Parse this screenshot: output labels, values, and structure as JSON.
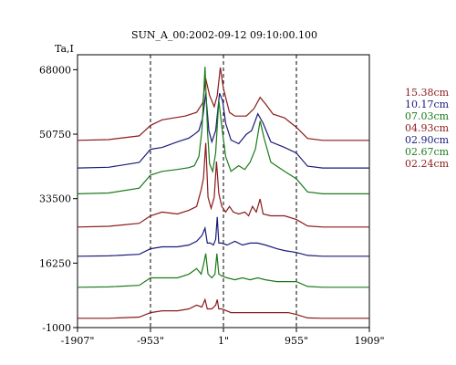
{
  "chart_data": {
    "type": "line",
    "title": "SUN_A_00:2002-09-12 09:10:00.100",
    "ylabel": "Ta,I",
    "xlabel": "",
    "x_ticks": [
      "-1907\"",
      "-953\"",
      "1\"",
      "955\"",
      "1909\""
    ],
    "y_ticks": [
      "68000",
      "50750",
      "33500",
      "16250",
      "-1000"
    ],
    "xlim": [
      -1907,
      1909
    ],
    "ylim": [
      -1000,
      72000
    ],
    "dashed_x": [
      -953,
      1,
      955
    ],
    "series": [
      {
        "name": "15.38cm",
        "color": "#8b1a1a",
        "offset": 47600,
        "points": [
          [
            -1907,
            0
          ],
          [
            -1500,
            200
          ],
          [
            -1100,
            1200
          ],
          [
            -953,
            4000
          ],
          [
            -800,
            5500
          ],
          [
            -500,
            6500
          ],
          [
            -350,
            7500
          ],
          [
            -270,
            10000
          ],
          [
            -230,
            16500
          ],
          [
            -180,
            12000
          ],
          [
            -120,
            9000
          ],
          [
            -80,
            12000
          ],
          [
            -40,
            19500
          ],
          [
            0,
            14000
          ],
          [
            80,
            7500
          ],
          [
            150,
            6500
          ],
          [
            300,
            6500
          ],
          [
            400,
            8500
          ],
          [
            480,
            11500
          ],
          [
            560,
            9500
          ],
          [
            650,
            7000
          ],
          [
            800,
            6000
          ],
          [
            955,
            3500
          ],
          [
            1100,
            500
          ],
          [
            1300,
            0
          ],
          [
            1909,
            0
          ]
        ]
      },
      {
        "name": "10.17cm",
        "color": "#1a1a7a",
        "offset": 40200,
        "points": [
          [
            -1907,
            0
          ],
          [
            -1500,
            200
          ],
          [
            -1100,
            1500
          ],
          [
            -953,
            5000
          ],
          [
            -800,
            5500
          ],
          [
            -600,
            7000
          ],
          [
            -450,
            8000
          ],
          [
            -380,
            9000
          ],
          [
            -320,
            10000
          ],
          [
            -270,
            13500
          ],
          [
            -230,
            20000
          ],
          [
            -190,
            10000
          ],
          [
            -150,
            7000
          ],
          [
            -100,
            10000
          ],
          [
            -50,
            20000
          ],
          [
            -10,
            18000
          ],
          [
            30,
            12000
          ],
          [
            100,
            7500
          ],
          [
            200,
            6500
          ],
          [
            300,
            9000
          ],
          [
            370,
            10000
          ],
          [
            450,
            14500
          ],
          [
            520,
            12000
          ],
          [
            620,
            7000
          ],
          [
            800,
            5500
          ],
          [
            955,
            4000
          ],
          [
            1100,
            500
          ],
          [
            1300,
            0
          ],
          [
            1909,
            0
          ]
        ]
      },
      {
        "name": "07.03cm",
        "color": "#1a7a1a",
        "offset": 33300,
        "points": [
          [
            -1907,
            0
          ],
          [
            -1500,
            200
          ],
          [
            -1100,
            1500
          ],
          [
            -953,
            5000
          ],
          [
            -800,
            6000
          ],
          [
            -600,
            6500
          ],
          [
            -450,
            7000
          ],
          [
            -380,
            7500
          ],
          [
            -320,
            10000
          ],
          [
            -280,
            17000
          ],
          [
            -240,
            34000
          ],
          [
            -205,
            16000
          ],
          [
            -180,
            8000
          ],
          [
            -140,
            6000
          ],
          [
            -100,
            11000
          ],
          [
            -60,
            25000
          ],
          [
            -20,
            18000
          ],
          [
            30,
            10000
          ],
          [
            100,
            6000
          ],
          [
            200,
            7500
          ],
          [
            280,
            6500
          ],
          [
            350,
            8500
          ],
          [
            420,
            12000
          ],
          [
            480,
            19500
          ],
          [
            530,
            15000
          ],
          [
            620,
            8500
          ],
          [
            800,
            6000
          ],
          [
            955,
            4000
          ],
          [
            1100,
            500
          ],
          [
            1300,
            0
          ],
          [
            1909,
            0
          ]
        ]
      },
      {
        "name": "04.93cm",
        "color": "#8b1a1a",
        "offset": 24400,
        "points": [
          [
            -1907,
            0
          ],
          [
            -1500,
            200
          ],
          [
            -1100,
            1000
          ],
          [
            -953,
            3000
          ],
          [
            -800,
            4000
          ],
          [
            -600,
            3500
          ],
          [
            -450,
            4500
          ],
          [
            -350,
            5500
          ],
          [
            -290,
            10000
          ],
          [
            -260,
            13000
          ],
          [
            -230,
            22500
          ],
          [
            -200,
            8000
          ],
          [
            -160,
            5000
          ],
          [
            -120,
            8000
          ],
          [
            -90,
            17500
          ],
          [
            -60,
            9000
          ],
          [
            -20,
            5500
          ],
          [
            30,
            4000
          ],
          [
            80,
            5500
          ],
          [
            130,
            4000
          ],
          [
            200,
            3500
          ],
          [
            280,
            4000
          ],
          [
            330,
            3000
          ],
          [
            380,
            5500
          ],
          [
            430,
            4000
          ],
          [
            480,
            7500
          ],
          [
            520,
            3500
          ],
          [
            620,
            3000
          ],
          [
            800,
            3000
          ],
          [
            955,
            2000
          ],
          [
            1100,
            300
          ],
          [
            1300,
            0
          ],
          [
            1909,
            0
          ]
        ]
      },
      {
        "name": "02.90cm",
        "color": "#1a1a7a",
        "offset": 16600,
        "points": [
          [
            -1907,
            0
          ],
          [
            -1500,
            100
          ],
          [
            -1100,
            500
          ],
          [
            -953,
            2000
          ],
          [
            -800,
            2500
          ],
          [
            -600,
            2500
          ],
          [
            -450,
            3000
          ],
          [
            -350,
            4000
          ],
          [
            -280,
            5500
          ],
          [
            -240,
            7500
          ],
          [
            -210,
            3500
          ],
          [
            -170,
            3500
          ],
          [
            -130,
            3000
          ],
          [
            -100,
            4500
          ],
          [
            -80,
            10500
          ],
          [
            -60,
            3500
          ],
          [
            -20,
            3500
          ],
          [
            50,
            3000
          ],
          [
            150,
            4000
          ],
          [
            250,
            3000
          ],
          [
            350,
            3500
          ],
          [
            450,
            3500
          ],
          [
            550,
            3000
          ],
          [
            700,
            2000
          ],
          [
            800,
            1500
          ],
          [
            955,
            1000
          ],
          [
            1100,
            200
          ],
          [
            1300,
            0
          ],
          [
            1909,
            0
          ]
        ]
      },
      {
        "name": "02.67cm",
        "color": "#1a7a1a",
        "offset": 8300,
        "points": [
          [
            -1907,
            0
          ],
          [
            -1500,
            100
          ],
          [
            -1100,
            500
          ],
          [
            -953,
            2500
          ],
          [
            -800,
            2500
          ],
          [
            -600,
            2500
          ],
          [
            -450,
            3500
          ],
          [
            -350,
            5000
          ],
          [
            -290,
            3500
          ],
          [
            -260,
            6000
          ],
          [
            -230,
            9000
          ],
          [
            -200,
            3500
          ],
          [
            -150,
            2500
          ],
          [
            -110,
            3500
          ],
          [
            -85,
            9000
          ],
          [
            -60,
            3500
          ],
          [
            -20,
            3000
          ],
          [
            50,
            2500
          ],
          [
            150,
            2000
          ],
          [
            250,
            2500
          ],
          [
            350,
            2000
          ],
          [
            450,
            2500
          ],
          [
            550,
            2000
          ],
          [
            700,
            1500
          ],
          [
            800,
            1500
          ],
          [
            955,
            1500
          ],
          [
            1100,
            200
          ],
          [
            1300,
            0
          ],
          [
            1909,
            0
          ]
        ]
      },
      {
        "name": "02.24cm",
        "color": "#8b1a1a",
        "offset": 0,
        "points": [
          [
            -1907,
            0
          ],
          [
            -1500,
            0
          ],
          [
            -1100,
            300
          ],
          [
            -953,
            1500
          ],
          [
            -800,
            2000
          ],
          [
            -600,
            2000
          ],
          [
            -450,
            2500
          ],
          [
            -350,
            3500
          ],
          [
            -280,
            3000
          ],
          [
            -240,
            5000
          ],
          [
            -210,
            2500
          ],
          [
            -150,
            2500
          ],
          [
            -100,
            3500
          ],
          [
            -80,
            5000
          ],
          [
            -60,
            2500
          ],
          [
            -20,
            2500
          ],
          [
            100,
            1500
          ],
          [
            300,
            1500
          ],
          [
            500,
            1500
          ],
          [
            700,
            1500
          ],
          [
            850,
            1500
          ],
          [
            955,
            1000
          ],
          [
            1100,
            100
          ],
          [
            1300,
            0
          ],
          [
            1909,
            0
          ]
        ]
      }
    ]
  }
}
